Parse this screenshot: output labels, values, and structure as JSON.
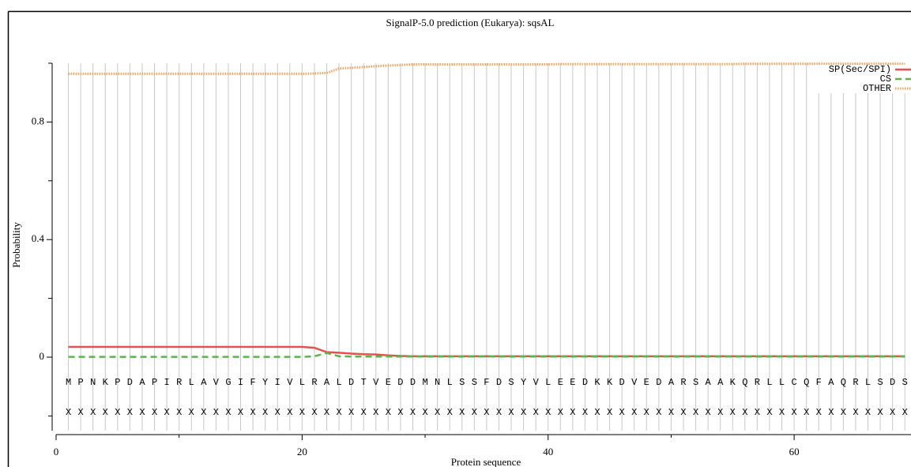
{
  "chart_data": {
    "type": "line",
    "title": "SignalP-5.0 prediction (Eukarya):  sqsAL",
    "xlabel": "Protein sequence",
    "ylabel": "Probability",
    "x": [
      1,
      2,
      3,
      4,
      5,
      6,
      7,
      8,
      9,
      10,
      11,
      12,
      13,
      14,
      15,
      16,
      17,
      18,
      19,
      20,
      21,
      22,
      23,
      24,
      25,
      26,
      27,
      28,
      29,
      30,
      31,
      32,
      33,
      34,
      35,
      36,
      37,
      38,
      39,
      40,
      41,
      42,
      43,
      44,
      45,
      46,
      47,
      48,
      49,
      50,
      51,
      52,
      53,
      54,
      55,
      56,
      57,
      58,
      59,
      60,
      61,
      62,
      63,
      64,
      65,
      66,
      67,
      68,
      69
    ],
    "sequence": [
      "M",
      "P",
      "N",
      "K",
      "P",
      "D",
      "A",
      "P",
      "I",
      "R",
      "L",
      "A",
      "V",
      "G",
      "I",
      "F",
      "Y",
      "I",
      "V",
      "L",
      "R",
      "A",
      "L",
      "D",
      "T",
      "V",
      "E",
      "D",
      "D",
      "M",
      "N",
      "L",
      "S",
      "S",
      "F",
      "D",
      "S",
      "Y",
      "V",
      "L",
      "E",
      "E",
      "D",
      "K",
      "K",
      "D",
      "V",
      "E",
      "D",
      "A",
      "R",
      "S",
      "A",
      "A",
      "K",
      "Q",
      "R",
      "L",
      "L",
      "C",
      "Q",
      "F",
      "A",
      "Q",
      "R",
      "L",
      "S",
      "D",
      "S"
    ],
    "annotation": [
      "X",
      "X",
      "X",
      "X",
      "X",
      "X",
      "X",
      "X",
      "X",
      "X",
      "X",
      "X",
      "X",
      "X",
      "X",
      "X",
      "X",
      "X",
      "X",
      "X",
      "X",
      "X",
      "X",
      "X",
      "X",
      "X",
      "X",
      "X",
      "X",
      "X",
      "X",
      "X",
      "X",
      "X",
      "X",
      "X",
      "X",
      "X",
      "X",
      "X",
      "X",
      "X",
      "X",
      "X",
      "X",
      "X",
      "X",
      "X",
      "X",
      "X",
      "X",
      "X",
      "X",
      "X",
      "X",
      "X",
      "X",
      "X",
      "X",
      "X",
      "X",
      "X",
      "X",
      "X",
      "X",
      "X",
      "X",
      "X",
      "X"
    ],
    "series": [
      {
        "name": "SP(Sec/SPI)",
        "color": "#e8504c",
        "dash": "solid",
        "values": [
          0.035,
          0.035,
          0.035,
          0.035,
          0.035,
          0.035,
          0.035,
          0.035,
          0.035,
          0.035,
          0.035,
          0.035,
          0.035,
          0.035,
          0.035,
          0.035,
          0.035,
          0.035,
          0.035,
          0.035,
          0.032,
          0.017,
          0.015,
          0.012,
          0.01,
          0.009,
          0.006,
          0.004,
          0.003,
          0.003,
          0.003,
          0.003,
          0.003,
          0.003,
          0.003,
          0.003,
          0.003,
          0.003,
          0.003,
          0.003,
          0.003,
          0.003,
          0.003,
          0.003,
          0.003,
          0.003,
          0.003,
          0.003,
          0.003,
          0.003,
          0.003,
          0.003,
          0.003,
          0.003,
          0.003,
          0.003,
          0.003,
          0.003,
          0.003,
          0.003,
          0.003,
          0.003,
          0.003,
          0.003,
          0.003,
          0.003,
          0.003,
          0.003,
          0.003
        ]
      },
      {
        "name": "CS",
        "color": "#5cb54a",
        "dash": "dashed",
        "values": [
          0.001,
          0.001,
          0.001,
          0.001,
          0.001,
          0.001,
          0.001,
          0.001,
          0.001,
          0.001,
          0.001,
          0.001,
          0.001,
          0.001,
          0.001,
          0.001,
          0.001,
          0.001,
          0.001,
          0.001,
          0.003,
          0.014,
          0.003,
          0.002,
          0.002,
          0.002,
          0.002,
          0.002,
          0.002,
          0.002,
          0.002,
          0.002,
          0.002,
          0.002,
          0.002,
          0.002,
          0.002,
          0.002,
          0.002,
          0.002,
          0.002,
          0.002,
          0.002,
          0.002,
          0.002,
          0.002,
          0.002,
          0.002,
          0.002,
          0.002,
          0.002,
          0.002,
          0.002,
          0.002,
          0.002,
          0.002,
          0.002,
          0.002,
          0.002,
          0.002,
          0.002,
          0.002,
          0.002,
          0.002,
          0.002,
          0.002,
          0.002,
          0.002,
          0.002
        ]
      },
      {
        "name": "OTHER",
        "color": "#f5a25c",
        "dash": "dotted",
        "values": [
          0.964,
          0.964,
          0.964,
          0.964,
          0.964,
          0.964,
          0.964,
          0.964,
          0.964,
          0.964,
          0.964,
          0.964,
          0.964,
          0.964,
          0.964,
          0.964,
          0.964,
          0.964,
          0.964,
          0.964,
          0.965,
          0.967,
          0.982,
          0.984,
          0.987,
          0.99,
          0.992,
          0.994,
          0.996,
          0.996,
          0.996,
          0.996,
          0.996,
          0.996,
          0.996,
          0.996,
          0.996,
          0.996,
          0.996,
          0.996,
          0.997,
          0.997,
          0.997,
          0.997,
          0.997,
          0.997,
          0.997,
          0.997,
          0.997,
          0.997,
          0.997,
          0.997,
          0.997,
          0.997,
          0.997,
          0.998,
          0.998,
          0.998,
          0.998,
          0.998,
          0.998,
          0.998,
          0.998,
          0.998,
          0.998,
          0.998,
          0.998,
          0.998,
          0.998
        ]
      }
    ],
    "xlim": [
      0,
      69.5
    ],
    "ylim": [
      -0.25,
      1.0
    ],
    "xticks": [
      0,
      20,
      40,
      60
    ],
    "xminorticks": [
      10,
      30,
      50
    ],
    "yticks": [
      0,
      0.4,
      0.8
    ],
    "yminorticks": [
      -0.2,
      0.2,
      0.6,
      1.0
    ],
    "grid": true,
    "legend": "upper right"
  }
}
